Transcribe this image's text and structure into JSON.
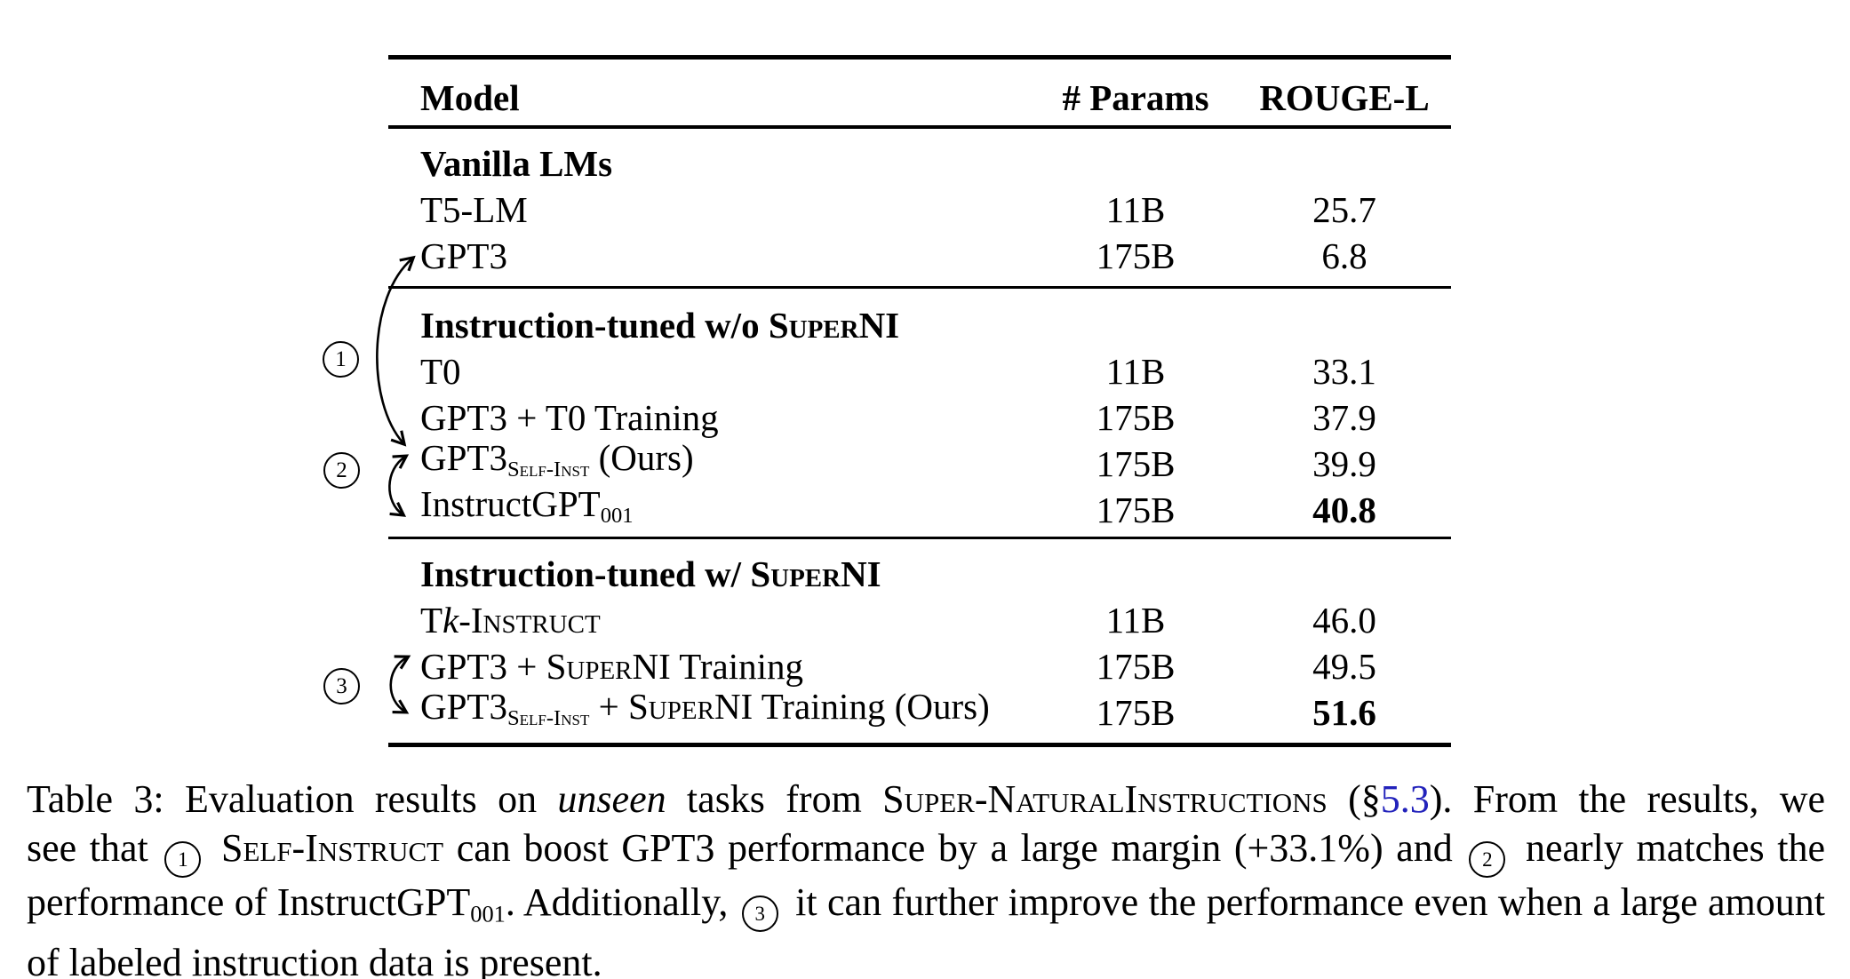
{
  "colors": {
    "link": "#2222bb",
    "text": "#000000",
    "background": "#ffffff"
  },
  "table": {
    "headers": {
      "model": "Model",
      "params": "# Params",
      "rouge": "ROUGE-L"
    },
    "sections": [
      {
        "title_segments": [
          {
            "t": "Vanilla LMs"
          }
        ],
        "rows": [
          {
            "model": [
              {
                "t": "T5-LM"
              }
            ],
            "params": "11B",
            "rouge": "25.7",
            "bold": false
          },
          {
            "model": [
              {
                "t": "GPT3"
              }
            ],
            "params": "175B",
            "rouge": "6.8",
            "bold": false
          }
        ]
      },
      {
        "title_segments": [
          {
            "t": "Instruction-tuned w/o "
          },
          {
            "t": "Super",
            "s": "sc"
          },
          {
            "t": "NI"
          }
        ],
        "rows": [
          {
            "model": [
              {
                "t": "T0"
              }
            ],
            "params": "11B",
            "rouge": "33.1",
            "bold": false
          },
          {
            "model": [
              {
                "t": "GPT3 + T0 Training"
              }
            ],
            "params": "175B",
            "rouge": "37.9",
            "bold": false
          },
          {
            "model": [
              {
                "t": "GPT3"
              },
              {
                "t": "Self-Inst",
                "s": "subsc"
              },
              {
                "t": " (Ours)"
              }
            ],
            "params": "175B",
            "rouge": "39.9",
            "bold": false
          },
          {
            "model": [
              {
                "t": "InstructGPT"
              },
              {
                "t": "001",
                "s": "sub"
              }
            ],
            "params": "175B",
            "rouge": "40.8",
            "bold": true
          }
        ]
      },
      {
        "title_segments": [
          {
            "t": "Instruction-tuned w/ "
          },
          {
            "t": "Super",
            "s": "sc"
          },
          {
            "t": "NI"
          }
        ],
        "rows": [
          {
            "model": [
              {
                "t": "T"
              },
              {
                "t": "k",
                "s": "it"
              },
              {
                "t": "-Instruct",
                "s": "sc"
              }
            ],
            "params": "11B",
            "rouge": "46.0",
            "bold": false
          },
          {
            "model": [
              {
                "t": "GPT3 + "
              },
              {
                "t": "Super",
                "s": "sc"
              },
              {
                "t": "NI Training"
              }
            ],
            "params": "175B",
            "rouge": "49.5",
            "bold": false
          },
          {
            "model": [
              {
                "t": "GPT3"
              },
              {
                "t": "Self-Inst",
                "s": "subsc"
              },
              {
                "t": " + "
              },
              {
                "t": "Super",
                "s": "sc"
              },
              {
                "t": "NI Training (Ours)"
              }
            ],
            "params": "175B",
            "rouge": "51.6",
            "bold": true
          }
        ]
      }
    ]
  },
  "annotations": {
    "labels": [
      "1",
      "2",
      "3"
    ]
  },
  "caption": {
    "lines": [
      [
        {
          "t": "Table 3:  Evaluation results on "
        },
        {
          "t": "unseen",
          "s": "it"
        },
        {
          "t": " tasks from "
        },
        {
          "t": "Super-NaturalInstructions",
          "s": "sc"
        },
        {
          "t": " (§"
        },
        {
          "t": "5.3",
          "s": "link"
        },
        {
          "t": ").  From the results, we"
        }
      ],
      [
        {
          "t": "see that "
        },
        {
          "t": "1",
          "s": "circled"
        },
        {
          "t": " "
        },
        {
          "t": "Self-Instruct",
          "s": "sc"
        },
        {
          "t": " can boost GPT3 performance by a large margin (+33.1%) and "
        },
        {
          "t": "2",
          "s": "circled"
        },
        {
          "t": " nearly matches the"
        }
      ],
      [
        {
          "t": "performance of InstructGPT"
        },
        {
          "t": "001",
          "s": "sub"
        },
        {
          "t": ". Additionally, "
        },
        {
          "t": "3",
          "s": "circled"
        },
        {
          "t": " it can further improve the performance even when a large amount"
        }
      ],
      [
        {
          "t": "of labeled instruction data is present."
        }
      ]
    ]
  }
}
